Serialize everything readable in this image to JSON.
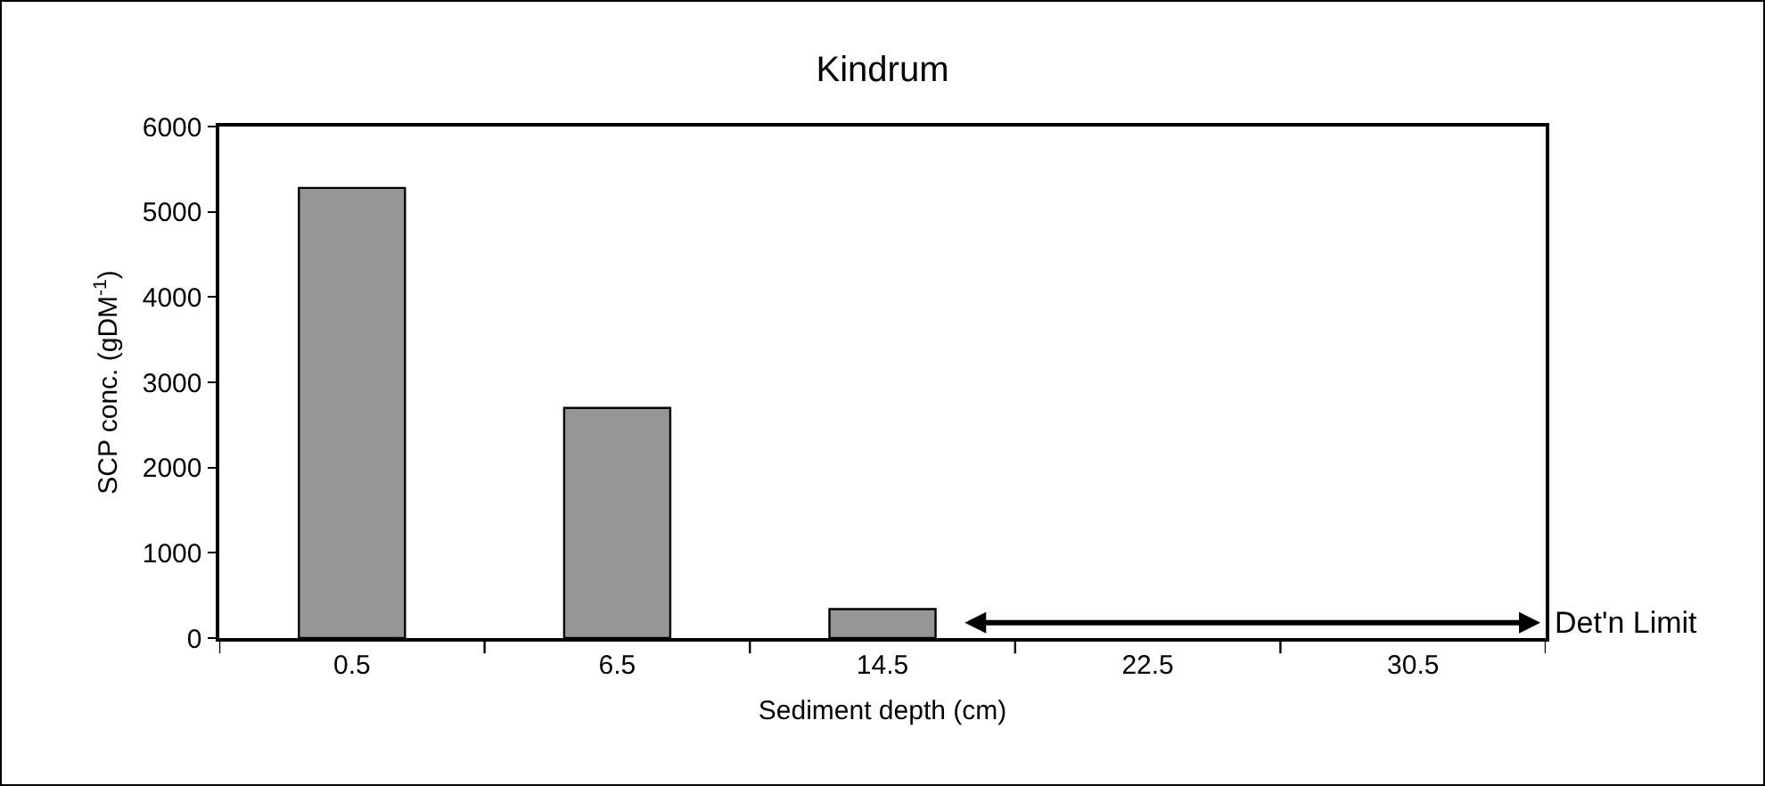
{
  "chart_data": {
    "type": "bar",
    "title": "Kindrum",
    "xlabel": "Sediment depth (cm)",
    "ylabel": "SCP conc. (gDM$^{-1}$)",
    "categories": [
      "0.5",
      "6.5",
      "14.5",
      "22.5",
      "30.5"
    ],
    "values": [
      5280,
      2700,
      340,
      null,
      null
    ],
    "color": "#969696",
    "ylim": [
      0,
      6000
    ],
    "yticks": [
      0,
      1000,
      2000,
      3000,
      4000,
      5000,
      6000
    ],
    "grid": false,
    "annotations": [
      "Det'n Limit"
    ]
  }
}
